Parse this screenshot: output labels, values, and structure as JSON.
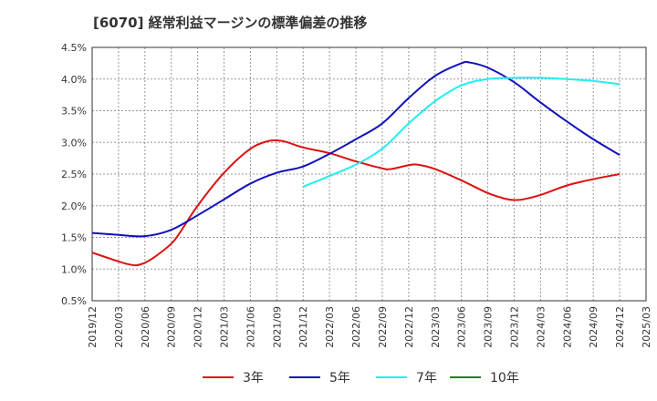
{
  "chart_data": {
    "type": "line",
    "title": "[6070]  経常利益マージンの標準偏差の推移",
    "xlabel": "",
    "ylabel": "",
    "y_unit": "%",
    "ylim": [
      0.5,
      4.5
    ],
    "yticks": [
      "0.5%",
      "1.0%",
      "1.5%",
      "2.0%",
      "2.5%",
      "3.0%",
      "3.5%",
      "4.0%",
      "4.5%"
    ],
    "xticks": [
      "2019/12",
      "2020/03",
      "2020/06",
      "2020/09",
      "2020/12",
      "2021/03",
      "2021/06",
      "2021/09",
      "2021/12",
      "2022/03",
      "2022/06",
      "2022/09",
      "2022/12",
      "2023/03",
      "2023/06",
      "2023/09",
      "2023/12",
      "2024/03",
      "2024/06",
      "2024/09",
      "2024/12",
      "2025/03"
    ],
    "grid": true,
    "legend_position": "bottom",
    "series": [
      {
        "name": "3年",
        "color": "#dd1111",
        "points": [
          [
            "2019/12",
            1.26
          ],
          [
            "2020/03",
            1.12
          ],
          [
            "2020/04",
            1.08
          ],
          [
            "2020/05",
            1.06
          ],
          [
            "2020/06",
            1.1
          ],
          [
            "2020/07",
            1.18
          ],
          [
            "2020/09",
            1.4
          ],
          [
            "2020/10",
            1.58
          ],
          [
            "2020/12",
            2.0
          ],
          [
            "2021/03",
            2.52
          ],
          [
            "2021/06",
            2.9
          ],
          [
            "2021/08",
            3.02
          ],
          [
            "2021/09",
            3.03
          ],
          [
            "2021/10",
            3.01
          ],
          [
            "2021/12",
            2.92
          ],
          [
            "2022/03",
            2.83
          ],
          [
            "2022/06",
            2.7
          ],
          [
            "2022/09",
            2.59
          ],
          [
            "2022/10",
            2.58
          ],
          [
            "2022/12",
            2.64
          ],
          [
            "2023/01",
            2.65
          ],
          [
            "2023/03",
            2.58
          ],
          [
            "2023/06",
            2.4
          ],
          [
            "2023/09",
            2.2
          ],
          [
            "2023/11",
            2.11
          ],
          [
            "2023/12",
            2.09
          ],
          [
            "2024/01",
            2.1
          ],
          [
            "2024/03",
            2.17
          ],
          [
            "2024/06",
            2.32
          ],
          [
            "2024/09",
            2.42
          ],
          [
            "2024/12",
            2.5
          ]
        ]
      },
      {
        "name": "5年",
        "color": "#1111bb",
        "points": [
          [
            "2019/12",
            1.57
          ],
          [
            "2020/03",
            1.54
          ],
          [
            "2020/06",
            1.52
          ],
          [
            "2020/09",
            1.62
          ],
          [
            "2020/12",
            1.85
          ],
          [
            "2021/03",
            2.1
          ],
          [
            "2021/06",
            2.35
          ],
          [
            "2021/09",
            2.52
          ],
          [
            "2021/12",
            2.62
          ],
          [
            "2022/03",
            2.82
          ],
          [
            "2022/06",
            3.05
          ],
          [
            "2022/09",
            3.3
          ],
          [
            "2022/12",
            3.7
          ],
          [
            "2023/03",
            4.05
          ],
          [
            "2023/06",
            4.25
          ],
          [
            "2023/07",
            4.26
          ],
          [
            "2023/09",
            4.18
          ],
          [
            "2023/12",
            3.95
          ],
          [
            "2024/03",
            3.63
          ],
          [
            "2024/06",
            3.33
          ],
          [
            "2024/09",
            3.05
          ],
          [
            "2024/12",
            2.8
          ]
        ]
      },
      {
        "name": "7年",
        "color": "#22eeee",
        "points": [
          [
            "2021/12",
            2.3
          ],
          [
            "2022/03",
            2.47
          ],
          [
            "2022/06",
            2.65
          ],
          [
            "2022/09",
            2.9
          ],
          [
            "2022/12",
            3.3
          ],
          [
            "2023/03",
            3.65
          ],
          [
            "2023/06",
            3.9
          ],
          [
            "2023/09",
            4.0
          ],
          [
            "2023/12",
            4.02
          ],
          [
            "2024/03",
            4.02
          ],
          [
            "2024/06",
            4.0
          ],
          [
            "2024/09",
            3.97
          ],
          [
            "2024/12",
            3.92
          ]
        ]
      },
      {
        "name": "10年",
        "color": "#118811",
        "points": []
      }
    ]
  }
}
